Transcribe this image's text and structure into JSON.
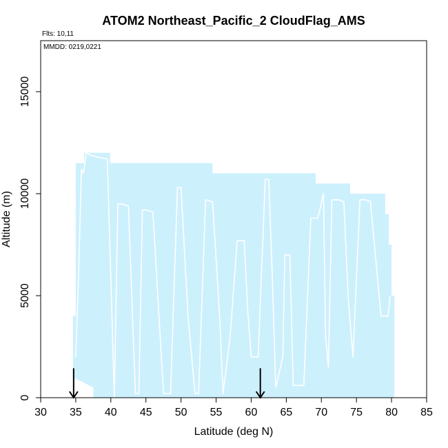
{
  "chart_data": {
    "type": "area",
    "title": "ATOM2 Northeast_Pacific_2 CloudFlag_AMS",
    "annotations": {
      "flights": "Flts: 10,11",
      "dates": "MMDD: 0219,0221"
    },
    "xlabel": "Latitude (deg N)",
    "ylabel": "Altitude (m)",
    "xlim": [
      30,
      85
    ],
    "ylim": [
      0,
      17500
    ],
    "xticks": [
      30,
      35,
      40,
      45,
      50,
      55,
      60,
      65,
      70,
      75,
      80,
      85
    ],
    "yticks": [
      0,
      5000,
      10000,
      15000
    ],
    "grid": false,
    "colors": {
      "fill": "#cdf0fd",
      "track": "#ffffff",
      "arrow": "#000000"
    },
    "filled_region": {
      "x": [
        34.6,
        35.0,
        35.0,
        36.2,
        36.2,
        39.9,
        39.9,
        54.5,
        54.5,
        69.2,
        69.2,
        74.1,
        74.1,
        79.1,
        79.1,
        79.6,
        79.6,
        80.0,
        80.0,
        80.4,
        80.4,
        37.5,
        37.5,
        34.6
      ],
      "y": [
        4000,
        4000,
        11500,
        11500,
        12000,
        12000,
        11500,
        11500,
        11000,
        11000,
        10500,
        10500,
        10000,
        10000,
        9000,
        9000,
        7500,
        7500,
        5000,
        5000,
        0,
        0,
        500,
        1000
      ]
    },
    "series": [
      {
        "x": [
          35.0,
          35.4,
          35.8,
          36.1,
          36.5,
          37.0,
          38.0,
          39.5,
          40.5,
          41.0,
          41.5,
          42.5,
          43.5,
          44.0,
          44.5,
          45.0,
          46.0,
          47.5,
          48.5,
          49.5,
          50.0,
          51.0,
          52.0,
          52.5,
          53.5,
          54.5,
          55.5,
          56.0,
          57.0,
          58.0,
          59.0,
          59.5,
          60.0,
          61.0,
          62.0,
          62.5,
          63.0,
          63.5,
          64.5,
          64.8,
          65.5,
          66.0,
          67.5,
          68.5,
          69.5,
          70.3,
          70.6,
          71.0,
          71.5,
          72.5,
          73.2,
          73.8,
          74.5,
          75.5,
          76.3,
          77.0,
          78.5,
          79.5,
          79.8
        ],
        "y": [
          2000,
          6000,
          11200,
          11000,
          12000,
          11900,
          11800,
          11700,
          0,
          9500,
          9500,
          9400,
          200,
          200,
          9200,
          9200,
          9100,
          200,
          200,
          10300,
          10300,
          4000,
          200,
          200,
          9700,
          9600,
          4000,
          200,
          3000,
          7700,
          7700,
          4300,
          2000,
          2000,
          10700,
          10700,
          6000,
          500,
          2000,
          7000,
          7000,
          600,
          600,
          8800,
          8800,
          10000,
          3000,
          1500,
          9700,
          9700,
          9600,
          5000,
          2000,
          9700,
          9700,
          9600,
          4000,
          4000,
          5000
        ]
      }
    ],
    "markers": [
      {
        "type": "arrow-down",
        "x": 34.7,
        "y_top": 700,
        "y_bottom": 0
      },
      {
        "type": "arrow-down",
        "x": 61.3,
        "y_top": 700,
        "y_bottom": 0
      }
    ]
  }
}
